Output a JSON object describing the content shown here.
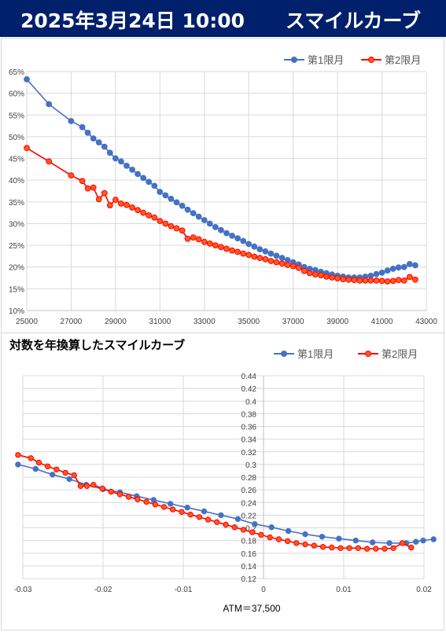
{
  "header": {
    "date_time": "2025年3月24日 10:00",
    "title": "スマイルカーブ"
  },
  "colors": {
    "banner_bg": "#00206b",
    "series1": "#4472c4",
    "series2_line": "#ff0000",
    "series2_fill": "#ff5a1f"
  },
  "chart_data": [
    {
      "type": "line",
      "title": "",
      "xlabel": "",
      "ylabel": "",
      "xlim": [
        25000,
        43000
      ],
      "ylim": [
        0.1,
        0.65
      ],
      "x_ticks": [
        "25000",
        "27000",
        "29000",
        "31000",
        "33000",
        "35000",
        "37000",
        "39000",
        "41000",
        "43000"
      ],
      "y_ticks": [
        "10%",
        "15%",
        "20%",
        "25%",
        "30%",
        "35%",
        "40%",
        "45%",
        "50%",
        "55%",
        "60%",
        "65%"
      ],
      "grid": true,
      "legend_position": "top-right",
      "series": [
        {
          "name": "第1限月",
          "points": [
            [
              25000,
              0.632
            ],
            [
              26000,
              0.575
            ],
            [
              27000,
              0.536
            ],
            [
              27500,
              0.522
            ],
            [
              27750,
              0.509
            ],
            [
              28000,
              0.496
            ],
            [
              28250,
              0.487
            ],
            [
              28500,
              0.477
            ],
            [
              28750,
              0.463
            ],
            [
              29000,
              0.45
            ],
            [
              29250,
              0.443
            ],
            [
              29500,
              0.433
            ],
            [
              29750,
              0.424
            ],
            [
              30000,
              0.414
            ],
            [
              30250,
              0.405
            ],
            [
              30500,
              0.396
            ],
            [
              30750,
              0.387
            ],
            [
              31000,
              0.373
            ],
            [
              31250,
              0.365
            ],
            [
              31500,
              0.357
            ],
            [
              31750,
              0.349
            ],
            [
              32000,
              0.341
            ],
            [
              32250,
              0.332
            ],
            [
              32500,
              0.324
            ],
            [
              32750,
              0.316
            ],
            [
              33000,
              0.308
            ],
            [
              33250,
              0.3
            ],
            [
              33500,
              0.292
            ],
            [
              33750,
              0.285
            ],
            [
              34000,
              0.278
            ],
            [
              34250,
              0.272
            ],
            [
              34500,
              0.266
            ],
            [
              34750,
              0.26
            ],
            [
              35000,
              0.253
            ],
            [
              35250,
              0.247
            ],
            [
              35500,
              0.241
            ],
            [
              35750,
              0.236
            ],
            [
              36000,
              0.231
            ],
            [
              36250,
              0.226
            ],
            [
              36500,
              0.221
            ],
            [
              36750,
              0.216
            ],
            [
              37000,
              0.211
            ],
            [
              37250,
              0.206
            ],
            [
              37500,
              0.2
            ],
            [
              37750,
              0.196
            ],
            [
              38000,
              0.193
            ],
            [
              38250,
              0.189
            ],
            [
              38500,
              0.186
            ],
            [
              38750,
              0.183
            ],
            [
              39000,
              0.18
            ],
            [
              39250,
              0.178
            ],
            [
              39500,
              0.176
            ],
            [
              39750,
              0.176
            ],
            [
              40000,
              0.176
            ],
            [
              40250,
              0.178
            ],
            [
              40500,
              0.18
            ],
            [
              40750,
              0.184
            ],
            [
              41000,
              0.187
            ],
            [
              41250,
              0.192
            ],
            [
              41500,
              0.196
            ],
            [
              41750,
              0.199
            ],
            [
              42000,
              0.2
            ],
            [
              42250,
              0.207
            ],
            [
              42500,
              0.204
            ]
          ]
        },
        {
          "name": "第2限月",
          "points": [
            [
              25000,
              0.474
            ],
            [
              26000,
              0.443
            ],
            [
              27000,
              0.411
            ],
            [
              27500,
              0.398
            ],
            [
              27750,
              0.381
            ],
            [
              28000,
              0.383
            ],
            [
              28250,
              0.356
            ],
            [
              28500,
              0.37
            ],
            [
              28750,
              0.342
            ],
            [
              29000,
              0.355
            ],
            [
              29250,
              0.346
            ],
            [
              29500,
              0.343
            ],
            [
              29750,
              0.337
            ],
            [
              30000,
              0.331
            ],
            [
              30250,
              0.325
            ],
            [
              30500,
              0.319
            ],
            [
              30750,
              0.314
            ],
            [
              31000,
              0.306
            ],
            [
              31250,
              0.3
            ],
            [
              31500,
              0.294
            ],
            [
              31750,
              0.289
            ],
            [
              32000,
              0.284
            ],
            [
              32250,
              0.265
            ],
            [
              32500,
              0.268
            ],
            [
              32750,
              0.264
            ],
            [
              33000,
              0.258
            ],
            [
              33250,
              0.254
            ],
            [
              33500,
              0.25
            ],
            [
              33750,
              0.246
            ],
            [
              34000,
              0.242
            ],
            [
              34250,
              0.238
            ],
            [
              34500,
              0.235
            ],
            [
              34750,
              0.231
            ],
            [
              35000,
              0.228
            ],
            [
              35250,
              0.224
            ],
            [
              35500,
              0.221
            ],
            [
              35750,
              0.218
            ],
            [
              36000,
              0.214
            ],
            [
              36250,
              0.211
            ],
            [
              36500,
              0.208
            ],
            [
              36750,
              0.205
            ],
            [
              37000,
              0.202
            ],
            [
              37250,
              0.198
            ],
            [
              37500,
              0.191
            ],
            [
              37750,
              0.186
            ],
            [
              38000,
              0.183
            ],
            [
              38250,
              0.181
            ],
            [
              38500,
              0.178
            ],
            [
              38750,
              0.176
            ],
            [
              39000,
              0.174
            ],
            [
              39250,
              0.172
            ],
            [
              39500,
              0.171
            ],
            [
              39750,
              0.17
            ],
            [
              40000,
              0.169
            ],
            [
              40250,
              0.169
            ],
            [
              40500,
              0.169
            ],
            [
              40750,
              0.169
            ],
            [
              41000,
              0.168
            ],
            [
              41250,
              0.167
            ],
            [
              41500,
              0.168
            ],
            [
              41750,
              0.17
            ],
            [
              42000,
              0.169
            ],
            [
              42250,
              0.177
            ],
            [
              42500,
              0.171
            ]
          ]
        }
      ]
    },
    {
      "type": "line",
      "title": "対数を年換算したスマイルカーブ",
      "xlabel": "ATM＝37,500",
      "ylabel": "",
      "xlim": [
        -0.03,
        0.02
      ],
      "ylim": [
        0.12,
        0.44
      ],
      "x_ticks": [
        "-0.03",
        "-0.02",
        "-0.01",
        "0",
        "0.01",
        "0.02"
      ],
      "y_ticks": [
        "0.12",
        "0.14",
        "0.16",
        "0.18",
        "0.2",
        "0.22",
        "0.24",
        "0.26",
        "0.28",
        "0.3",
        "0.32",
        "0.34",
        "0.36",
        "0.38",
        "0.4",
        "0.42",
        "0.44"
      ],
      "grid": true,
      "legend_position": "top-right",
      "series": [
        {
          "name": "第1限月",
          "points": [
            [
              -0.0306,
              0.3
            ],
            [
              -0.0284,
              0.293
            ],
            [
              -0.0263,
              0.284
            ],
            [
              -0.0242,
              0.277
            ],
            [
              -0.0221,
              0.268
            ],
            [
              -0.02,
              0.261
            ],
            [
              -0.0179,
              0.256
            ],
            [
              -0.0158,
              0.25
            ],
            [
              -0.0137,
              0.244
            ],
            [
              -0.0116,
              0.238
            ],
            [
              -0.0095,
              0.232
            ],
            [
              -0.0074,
              0.226
            ],
            [
              -0.0053,
              0.22
            ],
            [
              -0.0032,
              0.214
            ],
            [
              -0.0011,
              0.206
            ],
            [
              0.001,
              0.201
            ],
            [
              0.0031,
              0.195
            ],
            [
              0.0052,
              0.19
            ],
            [
              0.0073,
              0.186
            ],
            [
              0.0094,
              0.183
            ],
            [
              0.0115,
              0.18
            ],
            [
              0.0136,
              0.177
            ],
            [
              0.0157,
              0.176
            ],
            [
              0.0178,
              0.176
            ],
            [
              0.019,
              0.178
            ],
            [
              0.0199,
              0.18
            ],
            [
              0.0212,
              0.182
            ]
          ]
        },
        {
          "name": "第2限月",
          "points": [
            [
              -0.0306,
              0.315
            ],
            [
              -0.029,
              0.31
            ],
            [
              -0.028,
              0.303
            ],
            [
              -0.0269,
              0.297
            ],
            [
              -0.0258,
              0.292
            ],
            [
              -0.0247,
              0.287
            ],
            [
              -0.0236,
              0.283
            ],
            [
              -0.0228,
              0.266
            ],
            [
              -0.022,
              0.266
            ],
            [
              -0.0212,
              0.268
            ],
            [
              -0.0201,
              0.262
            ],
            [
              -0.019,
              0.257
            ],
            [
              -0.0179,
              0.253
            ],
            [
              -0.0168,
              0.249
            ],
            [
              -0.0157,
              0.245
            ],
            [
              -0.0146,
              0.241
            ],
            [
              -0.0135,
              0.237
            ],
            [
              -0.0124,
              0.233
            ],
            [
              -0.0113,
              0.229
            ],
            [
              -0.0102,
              0.225
            ],
            [
              -0.0091,
              0.221
            ],
            [
              -0.008,
              0.217
            ],
            [
              -0.0069,
              0.213
            ],
            [
              -0.0058,
              0.209
            ],
            [
              -0.0047,
              0.205
            ],
            [
              -0.0036,
              0.201
            ],
            [
              -0.0025,
              0.197
            ],
            [
              -0.0014,
              0.193
            ],
            [
              -0.0003,
              0.189
            ],
            [
              0.0008,
              0.185
            ],
            [
              0.0019,
              0.182
            ],
            [
              0.003,
              0.179
            ],
            [
              0.0041,
              0.176
            ],
            [
              0.0052,
              0.174
            ],
            [
              0.0063,
              0.172
            ],
            [
              0.0074,
              0.17
            ],
            [
              0.0085,
              0.169
            ],
            [
              0.0096,
              0.168
            ],
            [
              0.0107,
              0.168
            ],
            [
              0.0118,
              0.168
            ],
            [
              0.0129,
              0.167
            ],
            [
              0.014,
              0.167
            ],
            [
              0.0151,
              0.167
            ],
            [
              0.0162,
              0.168
            ],
            [
              0.0173,
              0.176
            ],
            [
              0.0184,
              0.169
            ]
          ]
        }
      ]
    }
  ]
}
